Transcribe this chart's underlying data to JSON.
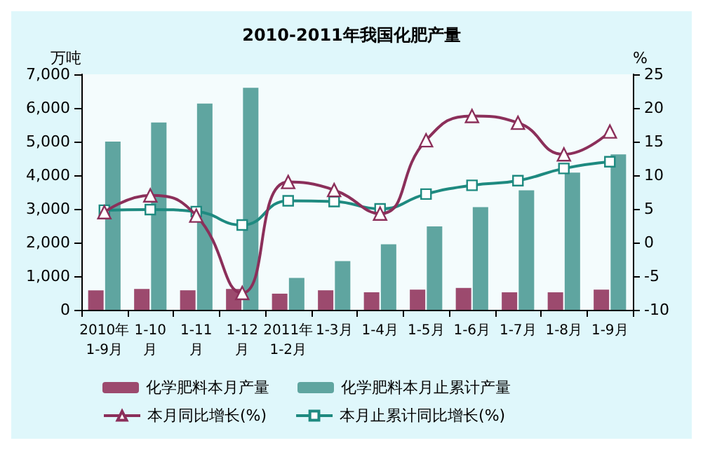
{
  "chart_data": {
    "type": "bar",
    "title": "2010-2011年我国化肥产量",
    "ylabel": "万吨",
    "y2label": "%",
    "categories": [
      "2010年\n1-9月",
      "1-10\n月",
      "1-11\n月",
      "1-12\n月",
      "2011年\n1-2月",
      "1-3月",
      "1-4月",
      "1-5月",
      "1-6月",
      "1-7月",
      "1-8月",
      "1-9月"
    ],
    "series": [
      {
        "name": "化学肥料本月产量",
        "color": "#9c4a6e",
        "values": [
          580,
          620,
          580,
          620,
          480,
          580,
          520,
          600,
          650,
          520,
          520,
          600
        ]
      },
      {
        "name": "化学肥料本月止累计产量",
        "color": "#5fa5a0",
        "values": [
          5000,
          5570,
          6130,
          6600,
          950,
          1450,
          1950,
          2480,
          3050,
          3550,
          4080,
          4620
        ]
      },
      {
        "name": "本月同比增长(%)",
        "type": "line",
        "axis": "y2",
        "marker": "triangle",
        "color": "#8b2f5a",
        "values": [
          4.5,
          7,
          4,
          -7.5,
          9,
          7.8,
          4.3,
          15.2,
          18.8,
          17.8,
          13.1,
          16.5
        ]
      },
      {
        "name": "本月止累计同比增长(%)",
        "type": "line",
        "axis": "y2",
        "marker": "square",
        "color": "#1e8a80",
        "values": [
          4.8,
          4.9,
          4.6,
          2.6,
          6.2,
          6.1,
          5,
          7.2,
          8.5,
          9.2,
          11,
          12
        ]
      }
    ],
    "ylim": [
      0,
      7000
    ],
    "yticks": [
      {
        "value": 0,
        "label": "0"
      },
      {
        "value": 1000,
        "label": "1,000"
      },
      {
        "value": 2000,
        "label": "2,000"
      },
      {
        "value": 3000,
        "label": "3,000"
      },
      {
        "value": 4000,
        "label": "4,000"
      },
      {
        "value": 5000,
        "label": "5,000"
      },
      {
        "value": 6000,
        "label": "6,000"
      },
      {
        "value": 7000,
        "label": "7,000"
      }
    ],
    "y2lim": [
      -10,
      25
    ],
    "y2ticks": [
      -10,
      -5,
      0,
      5,
      10,
      15,
      20,
      25
    ],
    "grid": false,
    "legend": "bottom"
  }
}
